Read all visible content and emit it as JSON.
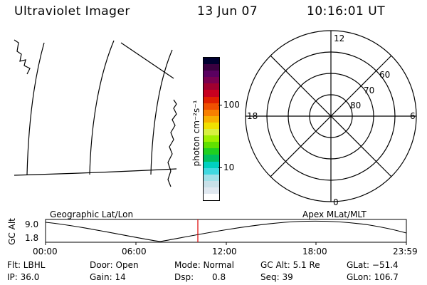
{
  "header": {
    "title": "Ultraviolet Imager",
    "date": "13 Jun 07",
    "time": "10:16:01 UT"
  },
  "colorbar": {
    "unit_label": "photon cm⁻²s⁻¹",
    "tick_100": "100",
    "tick_10": "10",
    "colors": [
      "#000030",
      "#3a0040",
      "#5a0060",
      "#7a0050",
      "#a00030",
      "#c80020",
      "#e02000",
      "#f05000",
      "#f88000",
      "#f8b000",
      "#f0e000",
      "#d8f040",
      "#a0f000",
      "#60e000",
      "#20d020",
      "#00c060",
      "#00d0c0",
      "#40d8e0",
      "#a0e0e8",
      "#c8e0e8",
      "#e0e8f0",
      "#ffffff"
    ]
  },
  "polar_plot": {
    "mlt_labels": {
      "top": "12",
      "left": "18",
      "right": "6",
      "bottom": "0"
    },
    "lat_labels": [
      "60",
      "70",
      "80"
    ]
  },
  "timeline": {
    "left_title": "Geographic Lat/Lon",
    "right_title": "Apex MLat/MLT",
    "axis_label": "GC Alt",
    "ytick_high": "9.0",
    "ytick_low": "1.8",
    "xticks": [
      "00:00",
      "06:00",
      "12:00",
      "18:00",
      "23:59"
    ],
    "marker_color": "#dd0000"
  },
  "status": {
    "flt": "Flt: LBHL",
    "ip": "IP: 36.0",
    "door": "Door: Open",
    "gain": "Gain: 14",
    "mode": "Mode: Normal",
    "dsp_label": "Dsp:",
    "dsp_value": "0.8",
    "gc_alt": "GC Alt: 5.1 Re",
    "seq": "Seq: 39",
    "glat": "GLat: −51.4",
    "glon": "GLon: 106.7"
  }
}
